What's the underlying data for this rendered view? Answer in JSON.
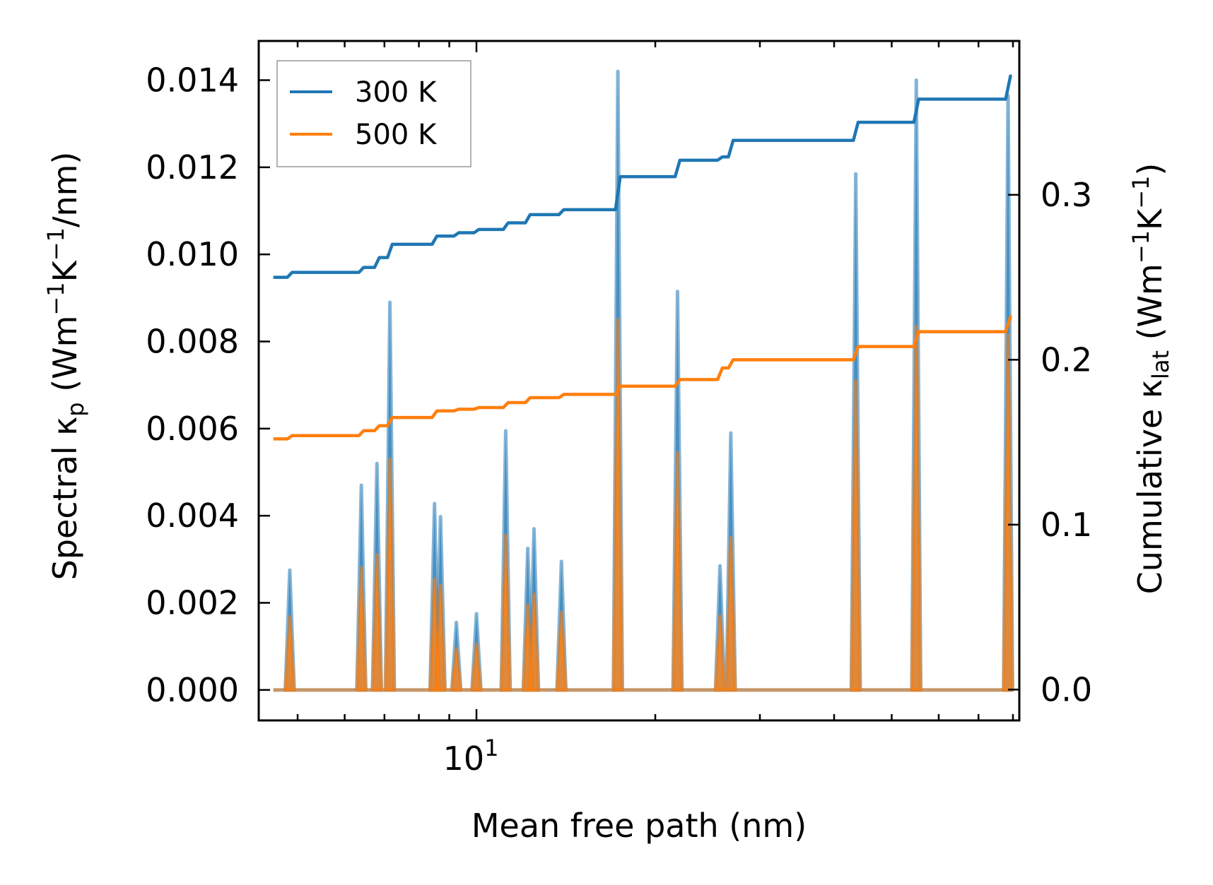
{
  "chart_data": {
    "type": "line",
    "title": "",
    "xlabel": "Mean free path (nm)",
    "ylabel_left_parts": {
      "main": "Spectral κ",
      "sub": "p",
      "unit_a": " (Wm",
      "sup_a": "−1",
      "unit_b": "K",
      "sup_b": "−1",
      "unit_c": "/nm)"
    },
    "ylabel_right_parts": {
      "main": "Cumulative κ",
      "sub": "lat",
      "unit_a": " (Wm",
      "sup_a": "−1",
      "unit_b": "K",
      "sup_b": "−1",
      "unit_c": ")"
    },
    "xscale": "log",
    "xlim": [
      4.3,
      82
    ],
    "ylim_left": [
      -0.0007,
      0.0149
    ],
    "ylim_right": [
      -0.0187,
      0.3933
    ],
    "x_major_ticks": [
      {
        "value": 10,
        "base": "10",
        "exp": "1"
      }
    ],
    "x_minor_ticks": [
      5,
      6,
      7,
      8,
      9,
      20,
      30,
      40,
      50,
      60,
      70,
      80
    ],
    "y_left_ticks": [
      {
        "value": 0.0,
        "label": "0.000"
      },
      {
        "value": 0.002,
        "label": "0.002"
      },
      {
        "value": 0.004,
        "label": "0.004"
      },
      {
        "value": 0.006,
        "label": "0.006"
      },
      {
        "value": 0.008,
        "label": "0.008"
      },
      {
        "value": 0.01,
        "label": "0.010"
      },
      {
        "value": 0.012,
        "label": "0.012"
      },
      {
        "value": 0.014,
        "label": "0.014"
      }
    ],
    "y_right_ticks": [
      {
        "value": 0.0,
        "label": "0.0"
      },
      {
        "value": 0.1,
        "label": "0.1"
      },
      {
        "value": 0.2,
        "label": "0.2"
      },
      {
        "value": 0.3,
        "label": "0.3"
      }
    ],
    "legend": {
      "position": "upper-left",
      "entries": [
        {
          "label": "300 K",
          "color": "#1f77b4"
        },
        {
          "label": "500 K",
          "color": "#ff7f0e"
        }
      ]
    },
    "spectral_series": [
      {
        "name": "300 K",
        "color": "#1f77b4",
        "axis": "left",
        "peaks": [
          {
            "x": 4.85,
            "y": 0.00275
          },
          {
            "x": 6.4,
            "y": 0.0047
          },
          {
            "x": 6.8,
            "y": 0.0052
          },
          {
            "x": 7.15,
            "y": 0.0089
          },
          {
            "x": 8.5,
            "y": 0.00428
          },
          {
            "x": 8.7,
            "y": 0.00398
          },
          {
            "x": 9.25,
            "y": 0.00155
          },
          {
            "x": 10.0,
            "y": 0.00175
          },
          {
            "x": 11.2,
            "y": 0.00595
          },
          {
            "x": 12.2,
            "y": 0.00325
          },
          {
            "x": 12.5,
            "y": 0.0037
          },
          {
            "x": 13.9,
            "y": 0.00295
          },
          {
            "x": 17.3,
            "y": 0.0142
          },
          {
            "x": 21.8,
            "y": 0.00915
          },
          {
            "x": 25.7,
            "y": 0.00285
          },
          {
            "x": 26.8,
            "y": 0.0059
          },
          {
            "x": 43.5,
            "y": 0.01185
          },
          {
            "x": 55.0,
            "y": 0.014
          },
          {
            "x": 78.5,
            "y": 0.01365
          }
        ]
      },
      {
        "name": "500 K",
        "color": "#ff7f0e",
        "axis": "left",
        "peaks": [
          {
            "x": 4.85,
            "y": 0.00168
          },
          {
            "x": 6.4,
            "y": 0.0028
          },
          {
            "x": 6.8,
            "y": 0.0031
          },
          {
            "x": 7.15,
            "y": 0.0053
          },
          {
            "x": 8.5,
            "y": 0.00255
          },
          {
            "x": 8.7,
            "y": 0.0024
          },
          {
            "x": 9.25,
            "y": 0.00095
          },
          {
            "x": 10.0,
            "y": 0.00105
          },
          {
            "x": 11.2,
            "y": 0.00355
          },
          {
            "x": 12.2,
            "y": 0.00195
          },
          {
            "x": 12.5,
            "y": 0.0022
          },
          {
            "x": 13.9,
            "y": 0.00178
          },
          {
            "x": 17.3,
            "y": 0.0085
          },
          {
            "x": 21.8,
            "y": 0.00545
          },
          {
            "x": 25.7,
            "y": 0.0017
          },
          {
            "x": 26.8,
            "y": 0.0035
          },
          {
            "x": 43.5,
            "y": 0.0071
          },
          {
            "x": 55.0,
            "y": 0.00835
          },
          {
            "x": 78.5,
            "y": 0.00815
          }
        ]
      }
    ],
    "cumulative_series": [
      {
        "name": "300 K",
        "color": "#1f77b4",
        "axis": "right",
        "steps": [
          [
            4.55,
            0.25
          ],
          [
            4.85,
            0.253
          ],
          [
            6.4,
            0.256
          ],
          [
            6.8,
            0.262
          ],
          [
            7.15,
            0.27
          ],
          [
            8.5,
            0.275
          ],
          [
            9.25,
            0.277
          ],
          [
            10.0,
            0.279
          ],
          [
            11.2,
            0.283
          ],
          [
            12.2,
            0.288
          ],
          [
            13.9,
            0.291
          ],
          [
            17.3,
            0.311
          ],
          [
            21.8,
            0.321
          ],
          [
            25.7,
            0.323
          ],
          [
            26.8,
            0.333
          ],
          [
            43.5,
            0.344
          ],
          [
            55.0,
            0.358
          ],
          [
            78.5,
            0.372
          ]
        ]
      },
      {
        "name": "500 K",
        "color": "#ff7f0e",
        "axis": "right",
        "steps": [
          [
            4.55,
            0.152
          ],
          [
            4.85,
            0.154
          ],
          [
            6.4,
            0.157
          ],
          [
            6.8,
            0.16
          ],
          [
            7.15,
            0.165
          ],
          [
            8.5,
            0.169
          ],
          [
            9.25,
            0.17
          ],
          [
            10.0,
            0.171
          ],
          [
            11.2,
            0.174
          ],
          [
            12.2,
            0.177
          ],
          [
            13.9,
            0.179
          ],
          [
            17.3,
            0.184
          ],
          [
            21.8,
            0.188
          ],
          [
            25.7,
            0.195
          ],
          [
            26.8,
            0.2
          ],
          [
            43.5,
            0.208
          ],
          [
            55.0,
            0.217
          ],
          [
            78.5,
            0.226
          ]
        ]
      }
    ]
  }
}
